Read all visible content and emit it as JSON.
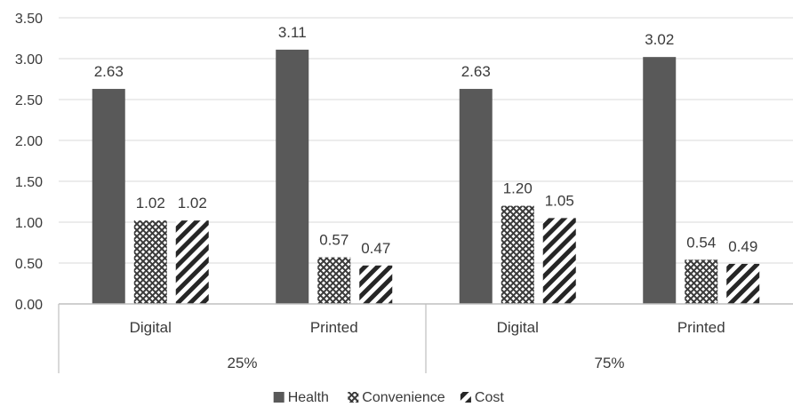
{
  "chart_data": {
    "type": "bar",
    "groups": [
      {
        "label": "25%",
        "categories": [
          "Digital",
          "Printed"
        ]
      },
      {
        "label": "75%",
        "categories": [
          "Digital",
          "Printed"
        ]
      }
    ],
    "series": [
      {
        "name": "Health",
        "values": [
          2.63,
          3.11,
          2.63,
          3.02
        ],
        "labels": [
          "2.63",
          "3.11",
          "2.63",
          "3.02"
        ],
        "pattern": "solid",
        "color": "#595959"
      },
      {
        "name": "Convenience",
        "values": [
          1.02,
          0.57,
          1.2,
          0.54
        ],
        "labels": [
          "1.02",
          "0.57",
          "1.20",
          "0.54"
        ],
        "pattern": "crosshatch",
        "color": "#404040"
      },
      {
        "name": "Cost",
        "values": [
          1.02,
          0.47,
          1.05,
          0.49
        ],
        "labels": [
          "1.02",
          "0.47",
          "1.05",
          "0.49"
        ],
        "pattern": "diagonal",
        "color": "#262626"
      }
    ],
    "ylim": [
      0,
      3.5
    ],
    "yticks": [
      "0.00",
      "0.50",
      "1.00",
      "1.50",
      "2.00",
      "2.50",
      "3.00",
      "3.50"
    ],
    "grid": true,
    "legend": "bottom",
    "title": "",
    "xlabel": "",
    "ylabel": ""
  }
}
